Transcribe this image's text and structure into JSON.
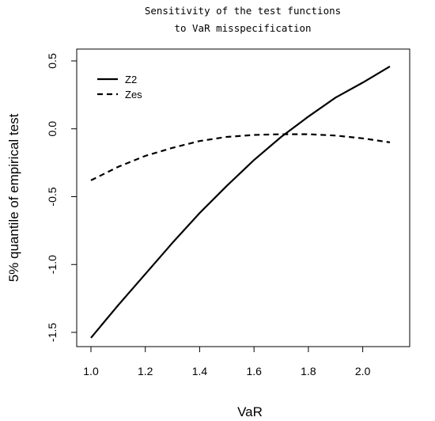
{
  "chart_data": {
    "type": "line",
    "title": [
      "Sensitivity of the test functions",
      "to VaR misspecification"
    ],
    "xlabel": "VaR",
    "ylabel": "5% quantile of empirical test",
    "xlim": [
      1.0,
      2.1
    ],
    "ylim": [
      -1.55,
      0.5
    ],
    "xticks": [
      1.0,
      1.2,
      1.4,
      1.6,
      1.8,
      2.0
    ],
    "xtick_labels": [
      "1.0",
      "1.2",
      "1.4",
      "1.6",
      "1.8",
      "2.0"
    ],
    "yticks": [
      -1.5,
      -1.0,
      -0.5,
      0.0,
      0.5
    ],
    "ytick_labels": [
      "-1.5",
      "-1.0",
      "-0.5",
      "0.0",
      "0.5"
    ],
    "grid": false,
    "legend_position": "top-left",
    "x": [
      1.0,
      1.1,
      1.2,
      1.3,
      1.4,
      1.5,
      1.6,
      1.7,
      1.8,
      1.9,
      2.0,
      2.1
    ],
    "series": [
      {
        "name": "Z2",
        "style": "solid",
        "color": "#000000",
        "values": [
          -1.54,
          -1.3,
          -1.07,
          -0.84,
          -0.62,
          -0.42,
          -0.23,
          -0.06,
          0.09,
          0.23,
          0.34,
          0.46
        ]
      },
      {
        "name": "Zes",
        "style": "dashed",
        "color": "#000000",
        "values": [
          -0.38,
          -0.28,
          -0.2,
          -0.14,
          -0.09,
          -0.06,
          -0.045,
          -0.04,
          -0.04,
          -0.05,
          -0.07,
          -0.1
        ]
      }
    ]
  }
}
